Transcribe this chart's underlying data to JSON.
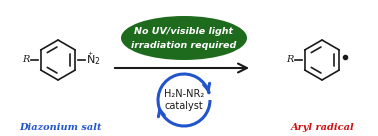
{
  "bg_color": "#ffffff",
  "arrow_color": "#1a1a1a",
  "ellipse_color": "#1e6b1e",
  "ellipse_text_color": "#ffffff",
  "ellipse_text1": "No UV/visible light",
  "ellipse_text2": "irradiation required",
  "catalyst_circle_color": "#2255cc",
  "catalyst_text1": "H₂N-NR₂",
  "catalyst_text2": "catalyst",
  "label_left_color": "#2255cc",
  "label_left_text": "Diazonium salt",
  "label_right_color": "#cc1111",
  "label_right_text": "Aryl radical",
  "struct_color": "#1a1a1a",
  "figsize": [
    3.78,
    1.36
  ],
  "dpi": 100
}
